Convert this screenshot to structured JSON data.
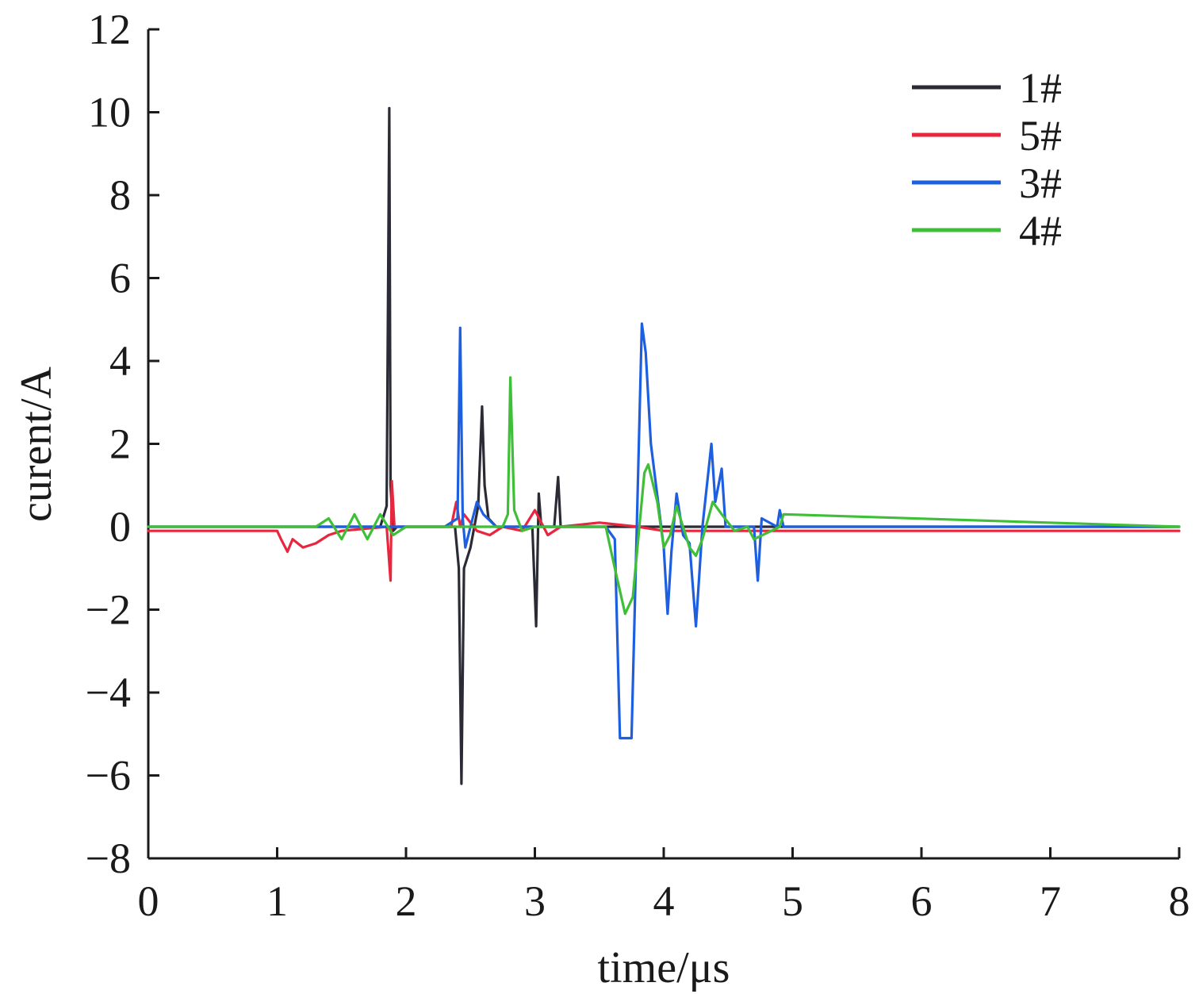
{
  "chart_data": {
    "type": "line",
    "title": "",
    "xlabel": "time/μs",
    "ylabel": "curent/A",
    "xlim": [
      0,
      8
    ],
    "ylim": [
      -8,
      12
    ],
    "xticks": [
      0,
      1,
      2,
      3,
      4,
      5,
      6,
      7,
      8
    ],
    "yticks": [
      -8,
      -6,
      -4,
      -2,
      0,
      2,
      4,
      6,
      8,
      10,
      12
    ],
    "ytick_labels": [
      "−8",
      "−6",
      "−4",
      "−2",
      "0",
      "2",
      "4",
      "6",
      "8",
      "10",
      "12"
    ],
    "grid": false,
    "legend_position": "top-right",
    "series": [
      {
        "name": "1#",
        "color": "#2b2b36",
        "x": [
          0,
          1.8,
          1.85,
          1.87,
          1.88,
          1.9,
          1.93,
          2.38,
          2.41,
          2.43,
          2.45,
          2.5,
          2.56,
          2.59,
          2.61,
          2.64,
          2.7,
          2.98,
          3.01,
          3.03,
          3.05,
          3.15,
          3.18,
          3.2,
          3.24,
          8
        ],
        "y": [
          0,
          0,
          0.5,
          10.1,
          1,
          -0.1,
          0,
          0,
          -1,
          -6.2,
          -1,
          -0.5,
          0.5,
          2.9,
          1,
          0.2,
          0,
          0,
          -2.4,
          0.8,
          0,
          0,
          1.2,
          0,
          0,
          0
        ]
      },
      {
        "name": "5#",
        "color": "#e8263e",
        "x": [
          0,
          1.0,
          1.03,
          1.08,
          1.12,
          1.2,
          1.3,
          1.4,
          1.5,
          1.85,
          1.88,
          1.89,
          1.91,
          1.95,
          2.35,
          2.39,
          2.42,
          2.45,
          2.55,
          2.65,
          2.75,
          2.9,
          3.0,
          3.1,
          3.2,
          3.5,
          3.8,
          4.0,
          8
        ],
        "y": [
          -0.1,
          -0.1,
          -0.3,
          -0.6,
          -0.3,
          -0.5,
          -0.4,
          -0.2,
          -0.1,
          0,
          -1.3,
          1.1,
          0,
          0,
          0,
          0.6,
          0,
          0.3,
          -0.1,
          -0.2,
          0,
          -0.1,
          0.4,
          -0.2,
          0,
          0.1,
          0,
          -0.1,
          -0.1
        ]
      },
      {
        "name": "3#",
        "color": "#1e5fe0",
        "x": [
          0,
          2.3,
          2.4,
          2.42,
          2.44,
          2.46,
          2.5,
          2.55,
          2.6,
          2.7,
          3.55,
          3.62,
          3.66,
          3.75,
          3.83,
          3.86,
          3.9,
          4.0,
          4.03,
          4.06,
          4.1,
          4.15,
          4.2,
          4.25,
          4.3,
          4.37,
          4.4,
          4.45,
          4.48,
          4.55,
          4.7,
          4.73,
          4.76,
          4.88,
          4.9,
          4.93,
          5.3,
          8
        ],
        "y": [
          0,
          0,
          0.2,
          4.8,
          0.2,
          -0.5,
          0,
          0.6,
          0.3,
          0,
          0,
          -0.3,
          -5.1,
          -5.1,
          4.9,
          4.2,
          2,
          -0.5,
          -2.1,
          -0.6,
          0.8,
          -0.2,
          -0.4,
          -2.4,
          0,
          2,
          0.6,
          1.4,
          0,
          0,
          0,
          -1.3,
          0.2,
          0,
          0.4,
          0,
          0,
          0
        ]
      },
      {
        "name": "4#",
        "color": "#3fbf38",
        "x": [
          0,
          1.3,
          1.4,
          1.5,
          1.6,
          1.7,
          1.8,
          1.9,
          2.0,
          2.75,
          2.79,
          2.81,
          2.84,
          2.9,
          3.0,
          3.1,
          3.55,
          3.62,
          3.7,
          3.76,
          3.85,
          3.88,
          3.95,
          4.0,
          4.05,
          4.1,
          4.17,
          4.2,
          4.25,
          4.3,
          4.38,
          4.45,
          4.55,
          4.65,
          4.7,
          4.9,
          4.93,
          8
        ],
        "y": [
          0,
          0,
          0.2,
          -0.3,
          0.3,
          -0.3,
          0.3,
          -0.2,
          0,
          0,
          0.3,
          3.6,
          0.4,
          -0.1,
          0,
          0,
          0,
          -1.0,
          -2.1,
          -1.7,
          1.3,
          1.5,
          0.6,
          -0.5,
          -0.2,
          0.5,
          -0.2,
          -0.5,
          -0.7,
          -0.3,
          0.6,
          0.3,
          -0.1,
          0,
          -0.3,
          0,
          0.3,
          0
        ]
      }
    ]
  }
}
